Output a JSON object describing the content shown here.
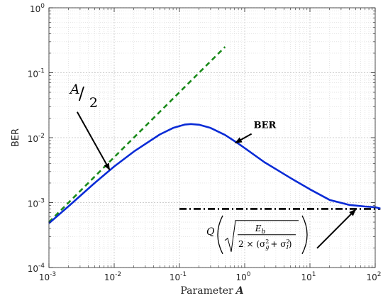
{
  "chart_data": {
    "type": "line",
    "xlabel": "Parameter",
    "xlabel_symbol": "A",
    "ylabel": "BER",
    "x_scale": "log",
    "y_scale": "log",
    "xlim": [
      0.001,
      150
    ],
    "ylim": [
      0.0001,
      1
    ],
    "x_ticks": [
      {
        "value": 0.001,
        "base": "10",
        "exp": "-3"
      },
      {
        "value": 0.01,
        "base": "10",
        "exp": "-2"
      },
      {
        "value": 0.1,
        "base": "10",
        "exp": "-1"
      },
      {
        "value": 1,
        "base": "10",
        "exp": "0"
      },
      {
        "value": 10,
        "base": "10",
        "exp": "1"
      },
      {
        "value": 100,
        "base": "10",
        "exp": "2"
      }
    ],
    "y_ticks": [
      {
        "value": 0.0001,
        "base": "10",
        "exp": "-4"
      },
      {
        "value": 0.001,
        "base": "10",
        "exp": "-3"
      },
      {
        "value": 0.01,
        "base": "10",
        "exp": "-2"
      },
      {
        "value": 0.1,
        "base": "10",
        "exp": "-1"
      },
      {
        "value": 1,
        "base": "10",
        "exp": "0"
      }
    ],
    "grid": true,
    "series": [
      {
        "style": "solid",
        "color": "#0a2bd6",
        "x": [
          0.001,
          0.002,
          0.005,
          0.01,
          0.02,
          0.05,
          0.08,
          0.12,
          0.15,
          0.2,
          0.3,
          0.5,
          0.8,
          1,
          2,
          5,
          10,
          20,
          40,
          70,
          100,
          120
        ],
        "y": [
          0.00048,
          0.00088,
          0.002,
          0.0036,
          0.0061,
          0.0112,
          0.0141,
          0.0159,
          0.0162,
          0.0158,
          0.0141,
          0.011,
          0.0081,
          0.0069,
          0.0042,
          0.0024,
          0.0016,
          0.0011,
          0.00092,
          0.00087,
          0.00085,
          0.00081
        ]
      },
      {
        "style": "dashed",
        "color": "#1a8a1a",
        "x": [
          0.001,
          0.5
        ],
        "y": [
          0.0005,
          0.25
        ]
      },
      {
        "style": "dashdot",
        "color": "#000000",
        "x": [
          0.1,
          120
        ],
        "y": [
          0.0008,
          0.0008
        ]
      }
    ],
    "annotations": [
      {
        "id": "a_over_2",
        "text_num": "A",
        "text_slash": "/",
        "text_den": "2",
        "x": 0.00315,
        "y": 0.032,
        "target_x": 0.0085,
        "target_y": 0.0032
      },
      {
        "id": "ber",
        "text": "BER",
        "x": 2.1,
        "y": 0.0155,
        "target_x": 0.72,
        "target_y": 0.0083
      },
      {
        "id": "q_formula",
        "text_q": "Q",
        "text_num": "E",
        "text_num_sub": "b",
        "text_den": "2 × (σ",
        "text_g": "g",
        "text_plus": "+ σ",
        "text_i": "I",
        "text_close": ")",
        "text_sup": "2",
        "x": 1.0,
        "y": 0.00032,
        "target_x": 50,
        "target_y": 0.00078
      }
    ]
  }
}
